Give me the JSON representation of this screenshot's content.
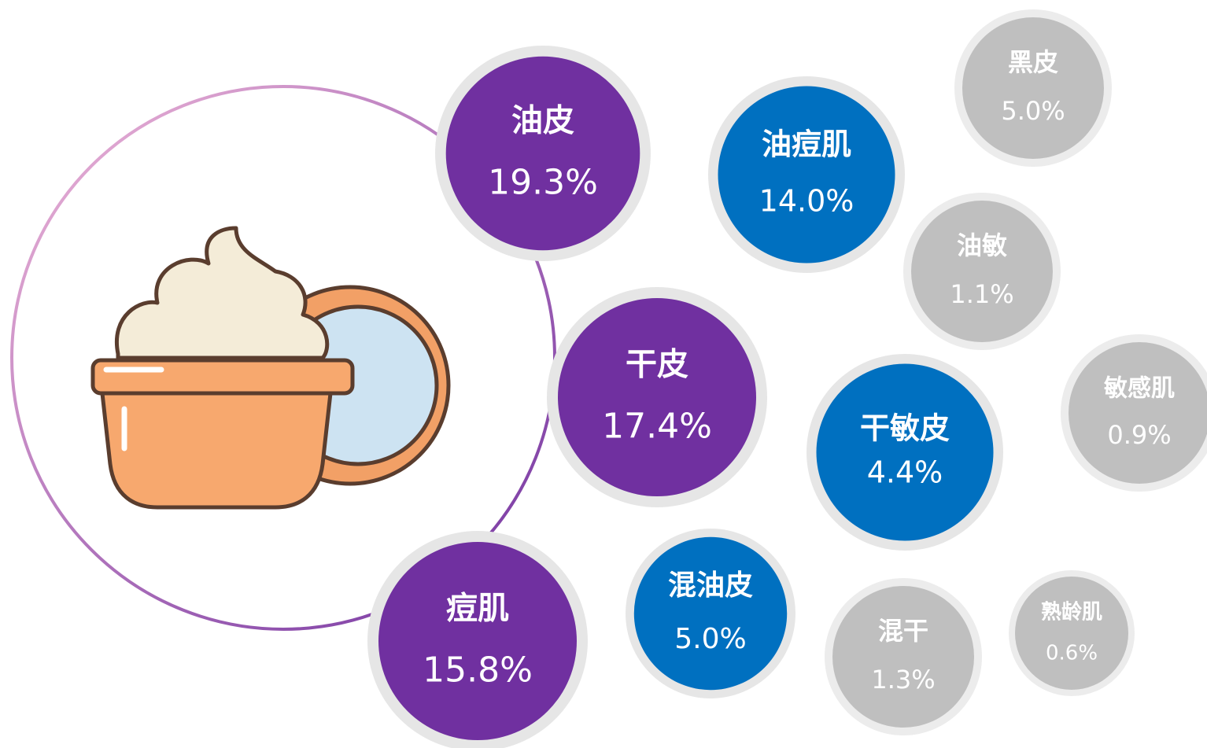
{
  "nodes": [
    {
      "label": "油皮",
      "value": "19.3%"
    },
    {
      "label": "干皮",
      "value": "17.4%"
    },
    {
      "label": "痘肌",
      "value": "15.8%"
    },
    {
      "label": "油痘肌",
      "value": "14.0%"
    },
    {
      "label": "干敏皮",
      "value": "4.4%"
    },
    {
      "label": "混油皮",
      "value": "5.0%"
    },
    {
      "label": "黑皮",
      "value": "5.0%"
    },
    {
      "label": "油敏",
      "value": "1.1%"
    },
    {
      "label": "敏感肌",
      "value": "0.9%"
    },
    {
      "label": "混干",
      "value": "1.3%"
    },
    {
      "label": "熟龄肌",
      "value": "0.6%"
    }
  ]
}
